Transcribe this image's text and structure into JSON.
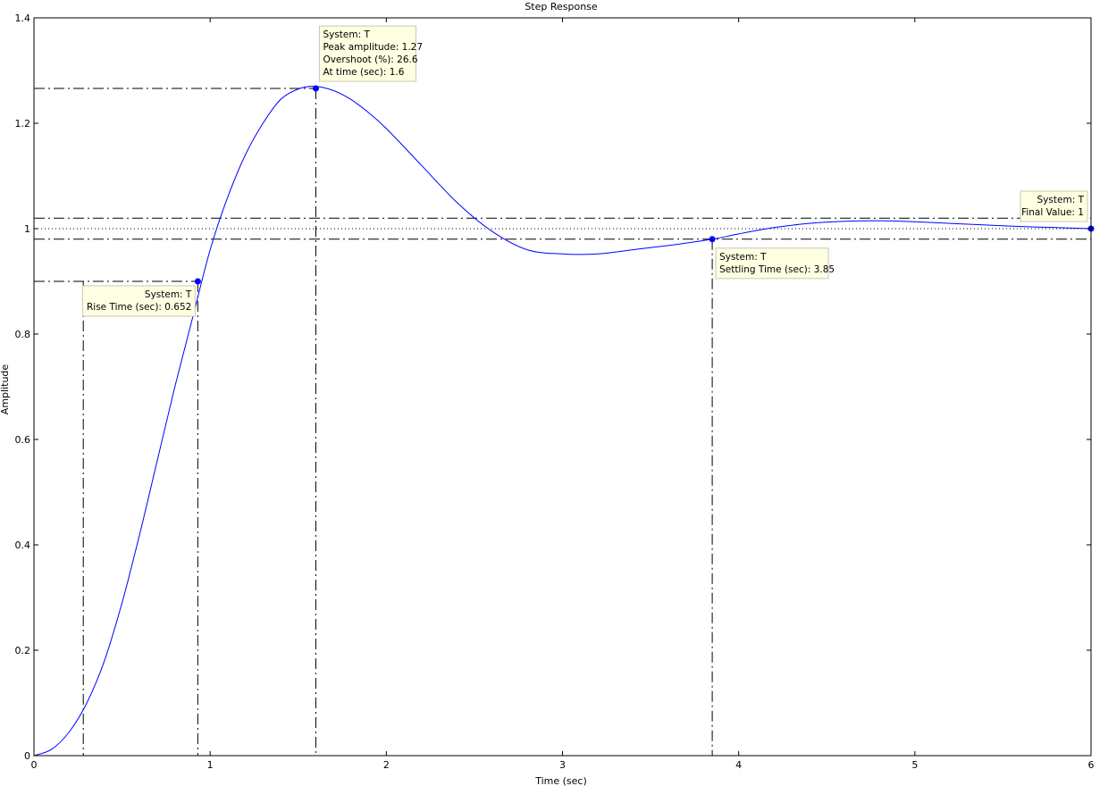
{
  "chart_data": {
    "type": "line",
    "title": "Step Response",
    "xlabel": "Time (sec)",
    "ylabel": "Amplitude",
    "xlim": [
      0,
      6
    ],
    "ylim": [
      0,
      1.4
    ],
    "xticks": [
      0,
      1,
      2,
      3,
      4,
      5,
      6
    ],
    "yticks": [
      0,
      0.2,
      0.4,
      0.6,
      0.8,
      1,
      1.2,
      1.4
    ],
    "xtick_labels": [
      "0",
      "1",
      "2",
      "3",
      "4",
      "5",
      "6"
    ],
    "ytick_labels": [
      "0",
      "0.2",
      "0.4",
      "0.6",
      "0.8",
      "1",
      "1.2",
      "1.4"
    ],
    "grid": false,
    "series": [
      {
        "name": "T",
        "color": "#0000ff",
        "x": [
          0,
          0.1,
          0.2,
          0.3,
          0.4,
          0.5,
          0.6,
          0.7,
          0.8,
          0.9,
          1.0,
          1.1,
          1.2,
          1.3,
          1.4,
          1.5,
          1.6,
          1.7,
          1.8,
          1.9,
          2.0,
          2.2,
          2.4,
          2.6,
          2.8,
          3.0,
          3.2,
          3.4,
          3.6,
          3.85,
          4.0,
          4.2,
          4.4,
          4.6,
          4.8,
          5.0,
          5.2,
          5.4,
          5.6,
          5.8,
          6.0
        ],
        "y": [
          0,
          0.012,
          0.045,
          0.1,
          0.18,
          0.29,
          0.42,
          0.56,
          0.7,
          0.83,
          0.96,
          1.06,
          1.14,
          1.2,
          1.245,
          1.265,
          1.27,
          1.262,
          1.245,
          1.22,
          1.19,
          1.12,
          1.05,
          0.995,
          0.96,
          0.952,
          0.952,
          0.96,
          0.968,
          0.98,
          0.99,
          1.002,
          1.01,
          1.014,
          1.015,
          1.013,
          1.01,
          1.007,
          1.004,
          1.002,
          1.0
        ]
      }
    ],
    "reference_lines": {
      "final_value": 1,
      "settling_band": [
        0.98,
        1.02
      ],
      "rise_band": [
        0.1,
        0.9
      ],
      "rise_start_time": 0.28
    },
    "annotations": [
      {
        "x": 0.93,
        "y": 0.9,
        "lines": [
          "System: T",
          "Rise Time (sec): 0.652"
        ]
      },
      {
        "x": 1.6,
        "y": 1.266,
        "lines": [
          "System: T",
          "Peak amplitude: 1.27",
          "Overshoot (%): 26.6",
          "At time (sec): 1.6"
        ]
      },
      {
        "x": 3.85,
        "y": 0.98,
        "lines": [
          "System: T",
          "Settling Time (sec): 3.85"
        ]
      },
      {
        "x": 6,
        "y": 1.0,
        "lines": [
          "System: T",
          "Final Value: 1"
        ]
      }
    ]
  }
}
